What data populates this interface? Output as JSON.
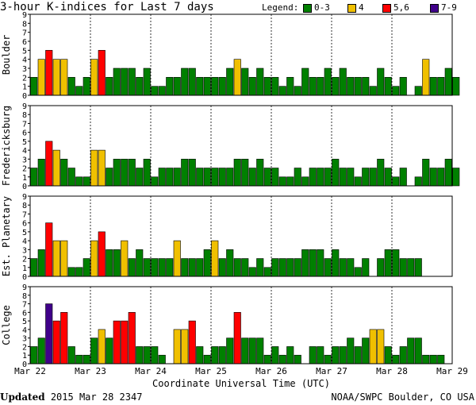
{
  "title": "3-hour K-indices for Last 7 days",
  "legend": {
    "label": "Legend:",
    "items": [
      {
        "text": "0-3",
        "color": "#008000"
      },
      {
        "text": "4",
        "color": "#f0c000"
      },
      {
        "text": "5,6",
        "color": "#ff0000"
      },
      {
        "text": "7-9",
        "color": "#40008a"
      }
    ]
  },
  "xlabel": "Coordinate Universal Time (UTC)",
  "footer": {
    "updated_label": "Updated",
    "updated_value": " 2015 Mar 28 2347",
    "source": "NOAA/SWPC Boulder, CO USA"
  },
  "chart_data": {
    "type": "bar",
    "xticks": [
      "Mar 22",
      "Mar 23",
      "Mar 24",
      "Mar 25",
      "Mar 26",
      "Mar 27",
      "Mar 28",
      "Mar 29"
    ],
    "ylim": [
      0,
      9
    ],
    "yticks": [
      0,
      1,
      2,
      3,
      4,
      5,
      6,
      7,
      8,
      9
    ],
    "bars_per_day": 8,
    "panels": [
      {
        "name": "Boulder",
        "values": [
          2,
          4,
          5,
          4,
          4,
          2,
          1,
          2,
          4,
          5,
          2,
          3,
          3,
          3,
          2,
          3,
          1,
          1,
          2,
          2,
          3,
          3,
          2,
          2,
          2,
          2,
          3,
          4,
          3,
          2,
          3,
          2,
          2,
          1,
          2,
          1,
          3,
          2,
          2,
          3,
          2,
          3,
          2,
          2,
          2,
          1,
          3,
          2,
          1,
          2,
          0,
          1,
          4,
          2,
          2,
          3,
          2,
          0
        ]
      },
      {
        "name": "Fredericksburg",
        "values": [
          2,
          3,
          5,
          4,
          3,
          2,
          1,
          1,
          4,
          4,
          2,
          3,
          3,
          3,
          2,
          3,
          1,
          2,
          2,
          2,
          3,
          3,
          2,
          2,
          2,
          2,
          2,
          3,
          3,
          2,
          3,
          2,
          2,
          1,
          1,
          2,
          1,
          2,
          2,
          2,
          3,
          2,
          2,
          1,
          2,
          2,
          3,
          2,
          1,
          2,
          0,
          1,
          3,
          2,
          2,
          3,
          2,
          0
        ]
      },
      {
        "name": "Est. Planetary",
        "values": [
          2,
          3,
          6,
          4,
          4,
          1,
          1,
          2,
          4,
          5,
          3,
          3,
          4,
          2,
          3,
          2,
          2,
          2,
          2,
          4,
          2,
          2,
          2,
          3,
          4,
          2,
          3,
          2,
          2,
          1,
          2,
          1,
          2,
          2,
          2,
          2,
          3,
          3,
          3,
          2,
          3,
          2,
          2,
          1,
          2,
          0,
          2,
          3,
          3,
          2,
          2,
          2,
          0,
          0
        ]
      },
      {
        "name": "College",
        "values": [
          2,
          3,
          7,
          5,
          6,
          2,
          1,
          1,
          3,
          4,
          3,
          5,
          5,
          6,
          2,
          2,
          2,
          1,
          0,
          4,
          4,
          5,
          2,
          1,
          2,
          2,
          3,
          6,
          3,
          3,
          3,
          1,
          2,
          1,
          2,
          1,
          0,
          2,
          2,
          1,
          2,
          2,
          3,
          2,
          3,
          4,
          4,
          2,
          1,
          2,
          3,
          3,
          1,
          1,
          1,
          0
        ]
      }
    ]
  }
}
